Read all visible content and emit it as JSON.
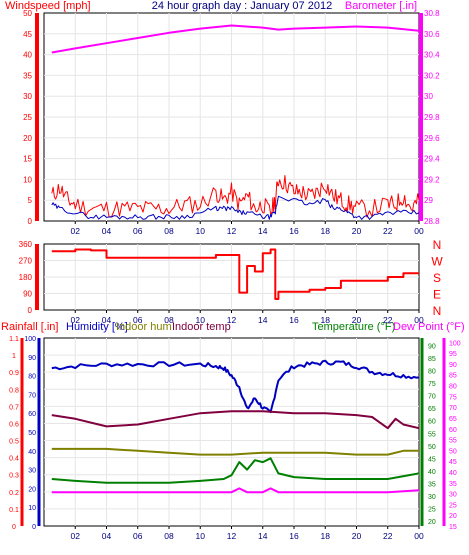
{
  "chart_data": [
    {
      "type": "line",
      "title": "24 hour graph day : January 07 2012",
      "left_axis_label": "Windspeed [mph]",
      "right_axis_label": "Barometer [.in]",
      "x_ticks": [
        "02",
        "04",
        "06",
        "08",
        "10",
        "12",
        "14",
        "16",
        "18",
        "20",
        "22",
        "00"
      ],
      "ylim_left": [
        0,
        50
      ],
      "ylim_right": [
        28.8,
        30.8
      ],
      "left_ticks": [
        0,
        5,
        10,
        15,
        20,
        25,
        30,
        35,
        40,
        45,
        50
      ],
      "right_ticks": [
        "28.8",
        "29",
        "29.2",
        "29.4",
        "29.6",
        "29.8",
        "30",
        "30.2",
        "30.4",
        "30.6",
        "30.8"
      ],
      "colors": {
        "wind": "#ff0000",
        "wind_avg": "#0000c0",
        "baro": "#ff00ff",
        "title": "#000080"
      },
      "series": [
        {
          "key": "baro",
          "x": [
            0.5,
            2,
            4,
            6,
            8,
            10,
            12,
            14,
            15,
            16,
            18,
            20,
            22,
            24
          ],
          "values": [
            30.42,
            30.46,
            30.51,
            30.56,
            30.61,
            30.65,
            30.68,
            30.66,
            30.64,
            30.65,
            30.66,
            30.67,
            30.66,
            30.63
          ]
        },
        {
          "key": "gust",
          "x": [
            0.5,
            1,
            1.5,
            2,
            3,
            4,
            5,
            6,
            7,
            8,
            9,
            10,
            11,
            11.5,
            12,
            12.5,
            13,
            13.5,
            14,
            14.5,
            14.8,
            15,
            15.5,
            16,
            16.5,
            17,
            17.5,
            18,
            18.5,
            19,
            19.5,
            20,
            21,
            22,
            22.5,
            23,
            23.5,
            24
          ],
          "values": [
            6,
            8,
            5,
            4,
            3,
            3,
            3,
            3,
            3,
            3,
            4,
            4,
            7,
            5,
            7,
            4,
            6,
            3,
            4,
            2,
            5,
            10,
            9,
            7,
            7,
            6,
            7,
            9,
            6,
            5,
            4,
            3,
            3,
            4,
            4,
            6,
            3,
            5
          ]
        },
        {
          "key": "avg",
          "x": [
            0.5,
            1,
            2,
            3,
            4,
            5,
            6,
            7,
            8,
            9,
            10,
            11,
            11.5,
            12,
            12.5,
            13,
            14,
            14.5,
            14.8,
            15,
            16,
            17,
            18,
            18.5,
            19,
            19.5,
            20,
            21,
            22,
            23,
            24
          ],
          "values": [
            4,
            3,
            2,
            1,
            1,
            1,
            1,
            1,
            1,
            1,
            2,
            3,
            3,
            3,
            2,
            2,
            1,
            1,
            2,
            6,
            5,
            4,
            5,
            3,
            3,
            2,
            1,
            1,
            2,
            2,
            2
          ]
        }
      ]
    },
    {
      "type": "line",
      "right_axis_label_letters": [
        "N",
        "W",
        "S",
        "E",
        "N"
      ],
      "ylim": [
        0,
        360
      ],
      "left_ticks": [
        0,
        90,
        180,
        270,
        360
      ],
      "left_tick_labels": [
        "0",
        "90",
        "180",
        "270",
        "360"
      ],
      "colors": {
        "dir": "#ff0000"
      },
      "series": [
        {
          "key": "dir",
          "x": [
            0.5,
            2,
            3,
            4,
            6,
            8,
            10,
            11,
            12,
            12.5,
            13,
            13.5,
            14,
            14.5,
            14.8,
            15,
            16,
            17,
            18,
            19,
            20,
            21,
            22,
            23,
            24
          ],
          "values": [
            320,
            330,
            325,
            285,
            285,
            285,
            285,
            300,
            300,
            95,
            240,
            210,
            310,
            330,
            60,
            100,
            100,
            110,
            120,
            160,
            160,
            160,
            180,
            200,
            200
          ]
        }
      ]
    },
    {
      "type": "line",
      "labels": {
        "rainfall": "Rainfall [.in]",
        "humidity": "Humidity [%]",
        "indoor_hum": "Indoor hum",
        "indoor_temp": "Indoor temp",
        "temperature": "Temperature (°F)",
        "dew_point": "Dew Point (°F)"
      },
      "rain_ticks": [
        "0",
        "0.1",
        "0.2",
        "0.3",
        "0.4",
        "0.5",
        "0.6",
        "0.7",
        "0.8",
        "0.9",
        "1",
        "1.1"
      ],
      "humidity_ticks": [
        "0",
        "10",
        "20",
        "30",
        "40",
        "50",
        "60",
        "70",
        "80",
        "90",
        "100"
      ],
      "temperature_ticks": [
        "20",
        "25",
        "30",
        "35",
        "40",
        "45",
        "50",
        "55",
        "60",
        "65",
        "70",
        "75",
        "80",
        "85",
        "90"
      ],
      "dewpoint_ticks": [
        "15",
        "20",
        "25",
        "30",
        "35",
        "40",
        "45",
        "50",
        "55",
        "60",
        "65",
        "70",
        "75",
        "80",
        "85",
        "90",
        "95",
        "100"
      ],
      "ylim_humidity": [
        0,
        100
      ],
      "colors": {
        "humidity": "#0000c0",
        "indoor_hum": "#808000",
        "indoor_temp": "#800040",
        "temperature": "#008000",
        "dew_point": "#ff00ff",
        "rain": "#ff0000"
      },
      "series": [
        {
          "key": "humidity",
          "x": [
            0.5,
            2,
            4,
            6,
            8,
            10,
            11,
            11.5,
            12,
            12.5,
            13,
            13.5,
            14,
            14.5,
            15,
            16,
            17,
            18,
            19,
            20,
            21,
            22,
            23,
            24
          ],
          "values": [
            84,
            85,
            86,
            86,
            86,
            86,
            85,
            84,
            80,
            74,
            62,
            68,
            63,
            60,
            78,
            85,
            86,
            87,
            87,
            85,
            82,
            81,
            80,
            79
          ]
        },
        {
          "key": "indoor_temp",
          "x": [
            0.5,
            2,
            3,
            4,
            6,
            8,
            10,
            12,
            14,
            16,
            18,
            20,
            21,
            22,
            22.5,
            23,
            24
          ],
          "values": [
            59,
            57,
            55,
            53,
            54,
            57,
            60,
            61,
            61,
            60,
            60,
            59,
            58,
            52,
            57,
            54,
            52
          ]
        },
        {
          "key": "indoor_hum",
          "x": [
            0.5,
            2,
            4,
            6,
            8,
            10,
            12,
            14,
            16,
            18,
            20,
            22,
            23,
            24
          ],
          "values": [
            41,
            41,
            41,
            40,
            39,
            38,
            38,
            39,
            39,
            39,
            38,
            38,
            40,
            40
          ]
        },
        {
          "key": "temperature",
          "x": [
            0.5,
            2,
            4,
            6,
            8,
            10,
            11.5,
            12,
            12.5,
            13,
            13.5,
            14,
            14.5,
            15,
            16,
            18,
            20,
            22,
            24
          ],
          "values": [
            25,
            24,
            23,
            23,
            23,
            24,
            25,
            27,
            34,
            30,
            35,
            34,
            36,
            28,
            26,
            25,
            25,
            25,
            28
          ]
        },
        {
          "key": "dew_point",
          "x": [
            0.5,
            2,
            4,
            6,
            8,
            10,
            12,
            12.5,
            13,
            13.5,
            14,
            14.5,
            15,
            16,
            18,
            20,
            22,
            24
          ],
          "values": [
            18,
            18,
            18,
            18,
            18,
            18,
            18,
            20,
            18,
            18,
            18,
            20,
            18,
            18,
            18,
            18,
            18,
            19
          ]
        }
      ]
    }
  ]
}
